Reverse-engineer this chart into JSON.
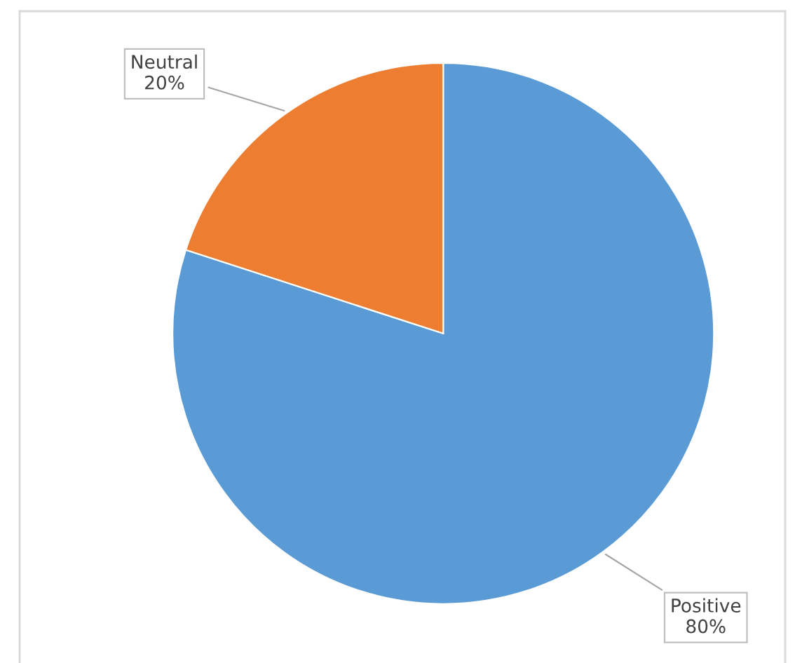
{
  "chart_data": {
    "type": "pie",
    "categories": [
      "Positive",
      "Neutral"
    ],
    "values": [
      80,
      20
    ],
    "colors": [
      "#5b9bd5",
      "#ed7d31"
    ],
    "value_labels": [
      "80%",
      "20%"
    ]
  }
}
